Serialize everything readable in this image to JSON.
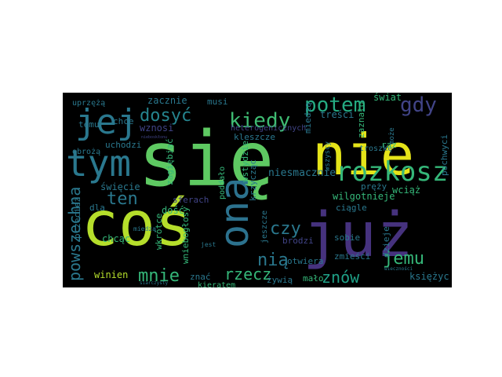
{
  "word_cloud": {
    "background": "#000000",
    "words": [
      {
        "text": "się",
        "color": "#5ec962"
      },
      {
        "text": "nie",
        "color": "#e5e419"
      },
      {
        "text": "coś",
        "color": "#b5de2b"
      },
      {
        "text": "już",
        "color": "#46327e"
      },
      {
        "text": "ona",
        "color": "#2c728e"
      },
      {
        "text": "tym",
        "color": "#2a788e"
      },
      {
        "text": "jej",
        "color": "#2a788e"
      },
      {
        "text": "rozkosz",
        "color": "#35b779"
      },
      {
        "text": "kiedy",
        "color": "#3fbc73"
      },
      {
        "text": "potem",
        "color": "#25ab82"
      },
      {
        "text": "gdy",
        "color": "#414487"
      },
      {
        "text": "dosyć",
        "color": "#25848e"
      },
      {
        "text": "ten",
        "color": "#2a788e"
      },
      {
        "text": "czy",
        "color": "#2a788e"
      },
      {
        "text": "nią",
        "color": "#2a788e"
      },
      {
        "text": "jemu",
        "color": "#35b779"
      },
      {
        "text": "mnie",
        "color": "#35b779"
      },
      {
        "text": "rzecz",
        "color": "#35b779"
      },
      {
        "text": "znów",
        "color": "#1fa187"
      },
      {
        "text": "powszechna",
        "color": "#2a788e"
      },
      {
        "text": "heterogenicznych",
        "color": "#414487"
      },
      {
        "text": "niesmacznie",
        "color": "#2a788e"
      },
      {
        "text": "wilgotnieje",
        "color": "#35b779"
      },
      {
        "text": "zacznie",
        "color": "#2a788e"
      },
      {
        "text": "musi",
        "color": "#2a788e"
      },
      {
        "text": "treści",
        "color": "#2a788e"
      },
      {
        "text": "świat",
        "color": "#35b779"
      },
      {
        "text": "zaznało",
        "color": "#35b779"
      },
      {
        "text": "kleszcze",
        "color": "#2a788e"
      },
      {
        "text": "wstydzie",
        "color": "#35b779"
      },
      {
        "text": "krzycząc",
        "color": "#2a788e"
      },
      {
        "text": "zagiębiać",
        "color": "#35b779"
      },
      {
        "text": "sferach",
        "color": "#414487"
      },
      {
        "text": "święcie",
        "color": "#2a788e"
      },
      {
        "text": "wznosi",
        "color": "#414487"
      },
      {
        "text": "uchodzi",
        "color": "#2a788e"
      },
      {
        "text": "temu",
        "color": "#2a788e"
      },
      {
        "text": "chce",
        "color": "#2a788e"
      },
      {
        "text": "obrożą",
        "color": "#2a788e"
      },
      {
        "text": "uprzężą",
        "color": "#2a788e"
      },
      {
        "text": "nieboskłonu",
        "color": "#414487"
      },
      {
        "text": "poddało",
        "color": "#35b779"
      },
      {
        "text": "wniebogłosy",
        "color": "#35b779"
      },
      {
        "text": "wkrótce",
        "color": "#35b779"
      },
      {
        "text": "chcąc",
        "color": "#35b779"
      },
      {
        "text": "dość",
        "color": "#35b779"
      },
      {
        "text": "dla",
        "color": "#2a788e"
      },
      {
        "text": "przecież",
        "color": "#2a788e"
      },
      {
        "text": "winien",
        "color": "#b5de2b"
      },
      {
        "text": "znać",
        "color": "#2a788e"
      },
      {
        "text": "żywią",
        "color": "#2a788e"
      },
      {
        "text": "mało",
        "color": "#35b779"
      },
      {
        "text": "kieratem",
        "color": "#35b779"
      },
      {
        "text": "miedzą",
        "color": "#2a788e"
      },
      {
        "text": "księżyc",
        "color": "#2a788e"
      },
      {
        "text": "wciąż",
        "color": "#35b779"
      },
      {
        "text": "pręży",
        "color": "#2a788e"
      },
      {
        "text": "ciągle",
        "color": "#2a788e"
      },
      {
        "text": "troszkę",
        "color": "#2a788e"
      },
      {
        "text": "raz",
        "color": "#35b779"
      },
      {
        "text": "jeszcze",
        "color": "#2a788e"
      },
      {
        "text": "brodzi",
        "color": "#414487"
      },
      {
        "text": "otwiera",
        "color": "#2a788e"
      },
      {
        "text": "sobie",
        "color": "#2a788e"
      },
      {
        "text": "zmieści",
        "color": "#2a788e"
      },
      {
        "text": "dzieje",
        "color": "#2a788e"
      },
      {
        "text": "pochwyci",
        "color": "#2a788e"
      },
      {
        "text": "może",
        "color": "#2a788e"
      },
      {
        "text": "wszyscy",
        "color": "#2a788e"
      },
      {
        "text": "miedzą",
        "color": "#2a788e"
      },
      {
        "text": "jest",
        "color": "#2a788e"
      },
      {
        "text": "wieczności",
        "color": "#2a788e"
      },
      {
        "text": "siarczysty",
        "color": "#2a788e"
      }
    ]
  }
}
